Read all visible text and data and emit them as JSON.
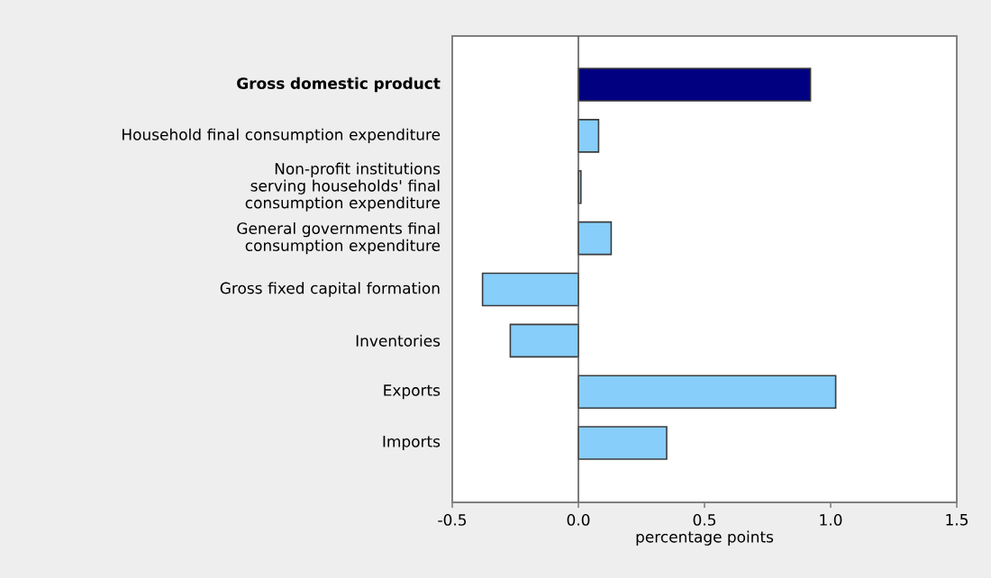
{
  "chart_data": {
    "type": "bar",
    "orientation": "horizontal",
    "categories": [
      "Gross domestic product",
      "Household final consumption expenditure",
      "Non-profit institutions serving households' final consumption expenditure",
      "General governments final consumption expenditure",
      "Gross fixed capital formation",
      "Inventories",
      "Exports",
      "Imports"
    ],
    "values": [
      0.92,
      0.08,
      0.01,
      0.13,
      -0.38,
      -0.27,
      1.02,
      0.35
    ],
    "colors": [
      "#000080",
      "#87cefa",
      "#87cefa",
      "#87cefa",
      "#87cefa",
      "#87cefa",
      "#87cefa",
      "#87cefa"
    ],
    "xlabel": "percentage points",
    "xlim": [
      -0.5,
      1.5
    ],
    "xticks": [
      -0.5,
      {
        "value": 0,
        "label": "0.0"
      },
      0.5,
      {
        "value": 1,
        "label": "1.0"
      },
      1.5
    ]
  }
}
